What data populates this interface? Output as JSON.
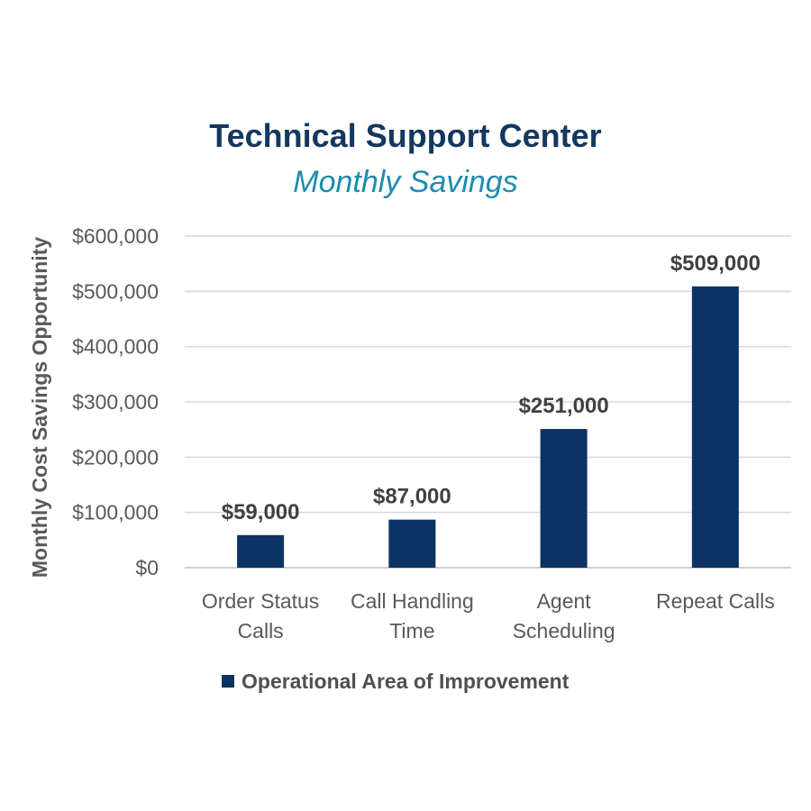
{
  "chart_data": {
    "type": "bar",
    "title": "Technical Support Center",
    "subtitle": "Monthly Savings",
    "ylabel": "Monthly Cost Savings Opportunity",
    "xlabel": "",
    "categories": [
      [
        "Order Status",
        "Calls"
      ],
      [
        "Call Handling",
        "Time"
      ],
      [
        "Agent",
        "Scheduling"
      ],
      [
        "Repeat Calls"
      ]
    ],
    "series": [
      {
        "name": "Operational Area of Improvement",
        "values": [
          59000,
          87000,
          251000,
          509000
        ],
        "data_labels": [
          "$59,000",
          "$87,000",
          "$251,000",
          "$509,000"
        ]
      }
    ],
    "ylim": [
      0,
      600000
    ],
    "yticks": [
      0,
      100000,
      200000,
      300000,
      400000,
      500000,
      600000
    ],
    "ytick_labels": [
      "$0",
      "$100,000",
      "$200,000",
      "$300,000",
      "$400,000",
      "$500,000",
      "$600,000"
    ],
    "grid": true,
    "legend": "bottom",
    "colors": {
      "bar": "#0b3363",
      "title": "#14375e",
      "subtitle": "#1d8bb0",
      "grid": "#d9d9d9",
      "axis_text": "#595959",
      "label_text": "#404040"
    }
  }
}
